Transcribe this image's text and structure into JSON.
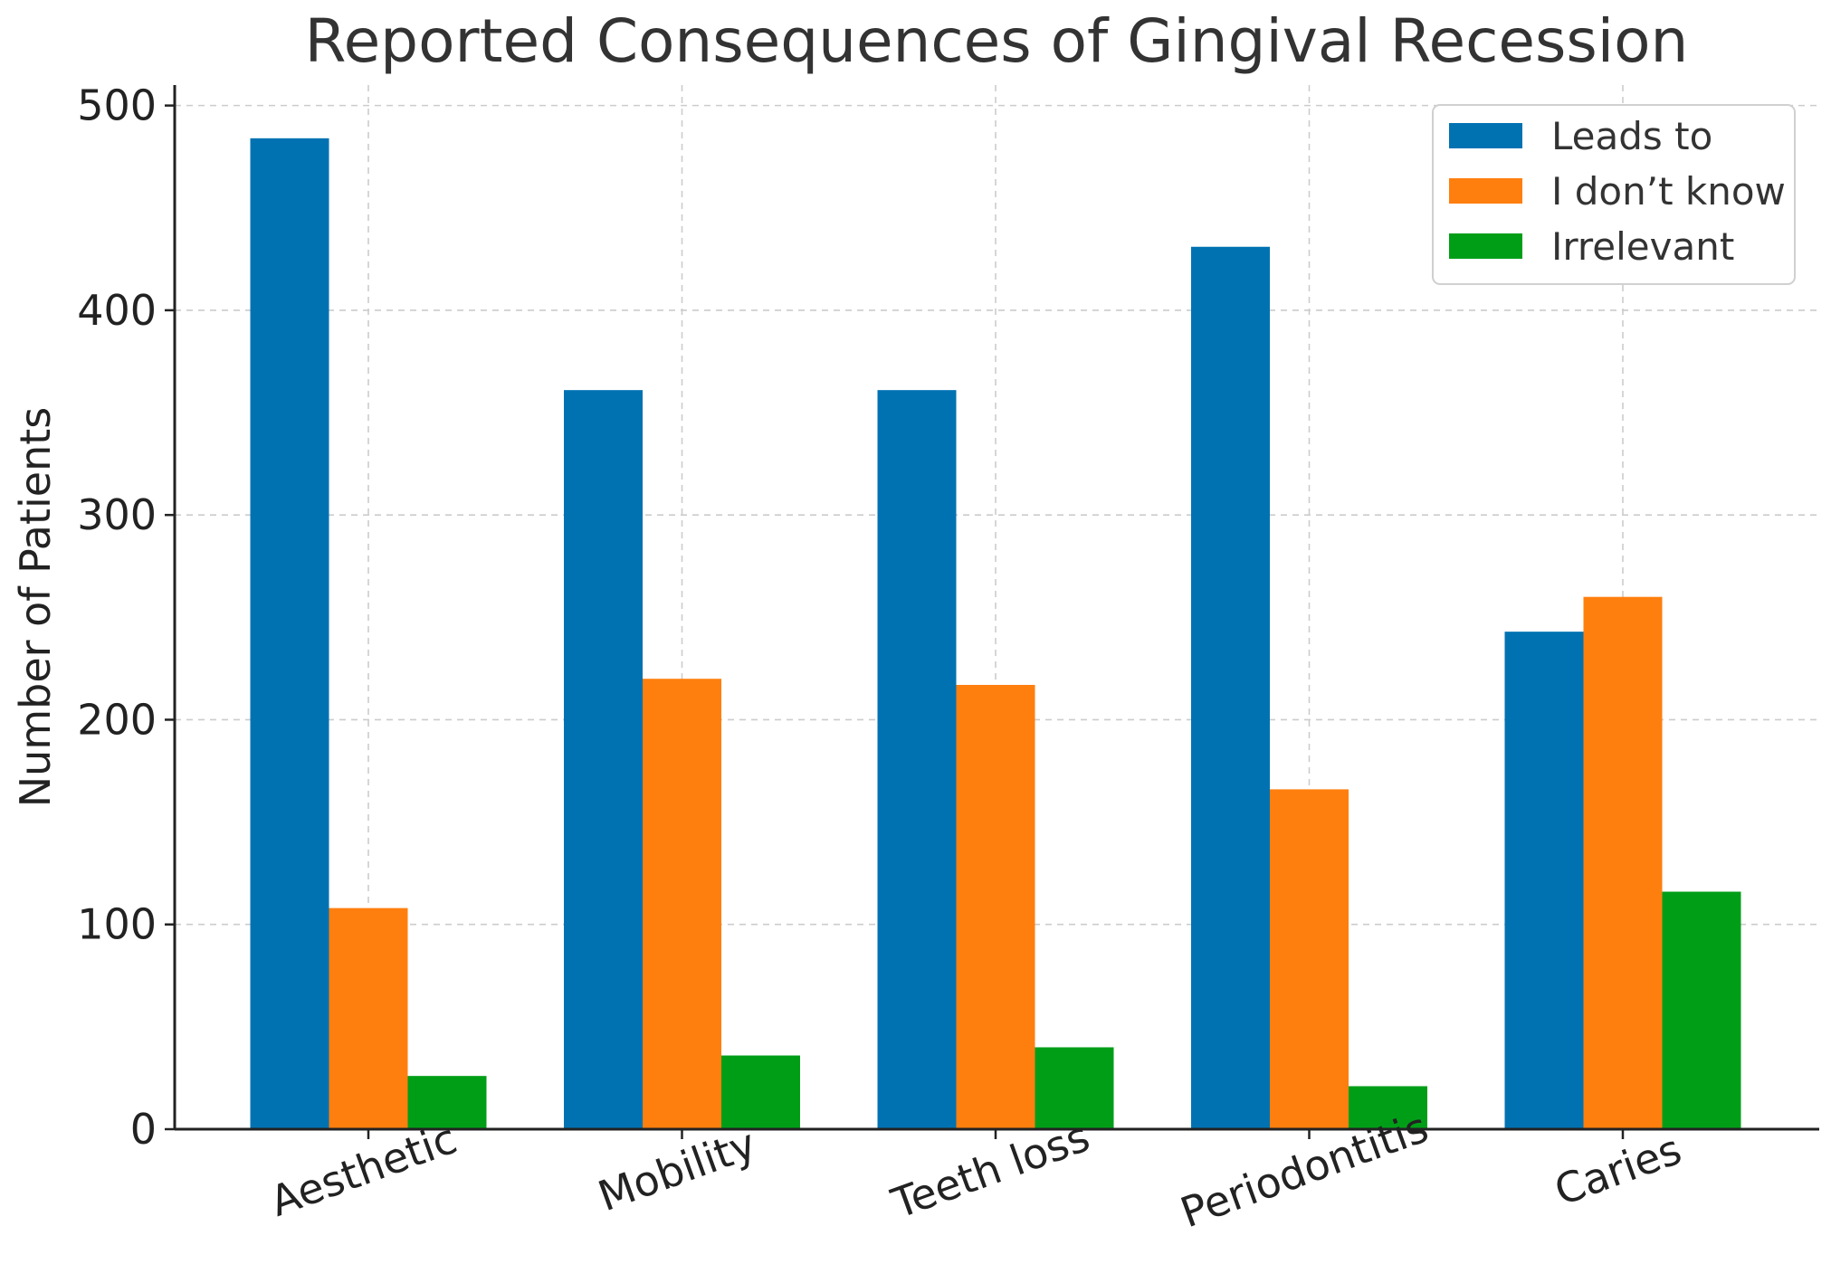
{
  "chart_data": {
    "type": "bar",
    "title": "Reported Consequences of Gingival Recession",
    "xlabel": "",
    "ylabel": "Number of Patients",
    "categories": [
      "Aesthetic",
      "Mobility",
      "Teeth loss",
      "Periodontitis",
      "Caries"
    ],
    "series": [
      {
        "name": "Leads to",
        "color": "#0072b2",
        "values": [
          484,
          361,
          361,
          431,
          243
        ]
      },
      {
        "name": "I don’t know",
        "color": "#ff7f0e",
        "values": [
          108,
          220,
          217,
          166,
          260
        ]
      },
      {
        "name": "Irrelevant",
        "color": "#009e17",
        "values": [
          26,
          36,
          40,
          21,
          116
        ]
      }
    ],
    "ylim": [
      0,
      510
    ],
    "yticks": [
      0,
      100,
      200,
      300,
      400,
      500
    ],
    "grid": true,
    "legend_position": "top-right"
  }
}
